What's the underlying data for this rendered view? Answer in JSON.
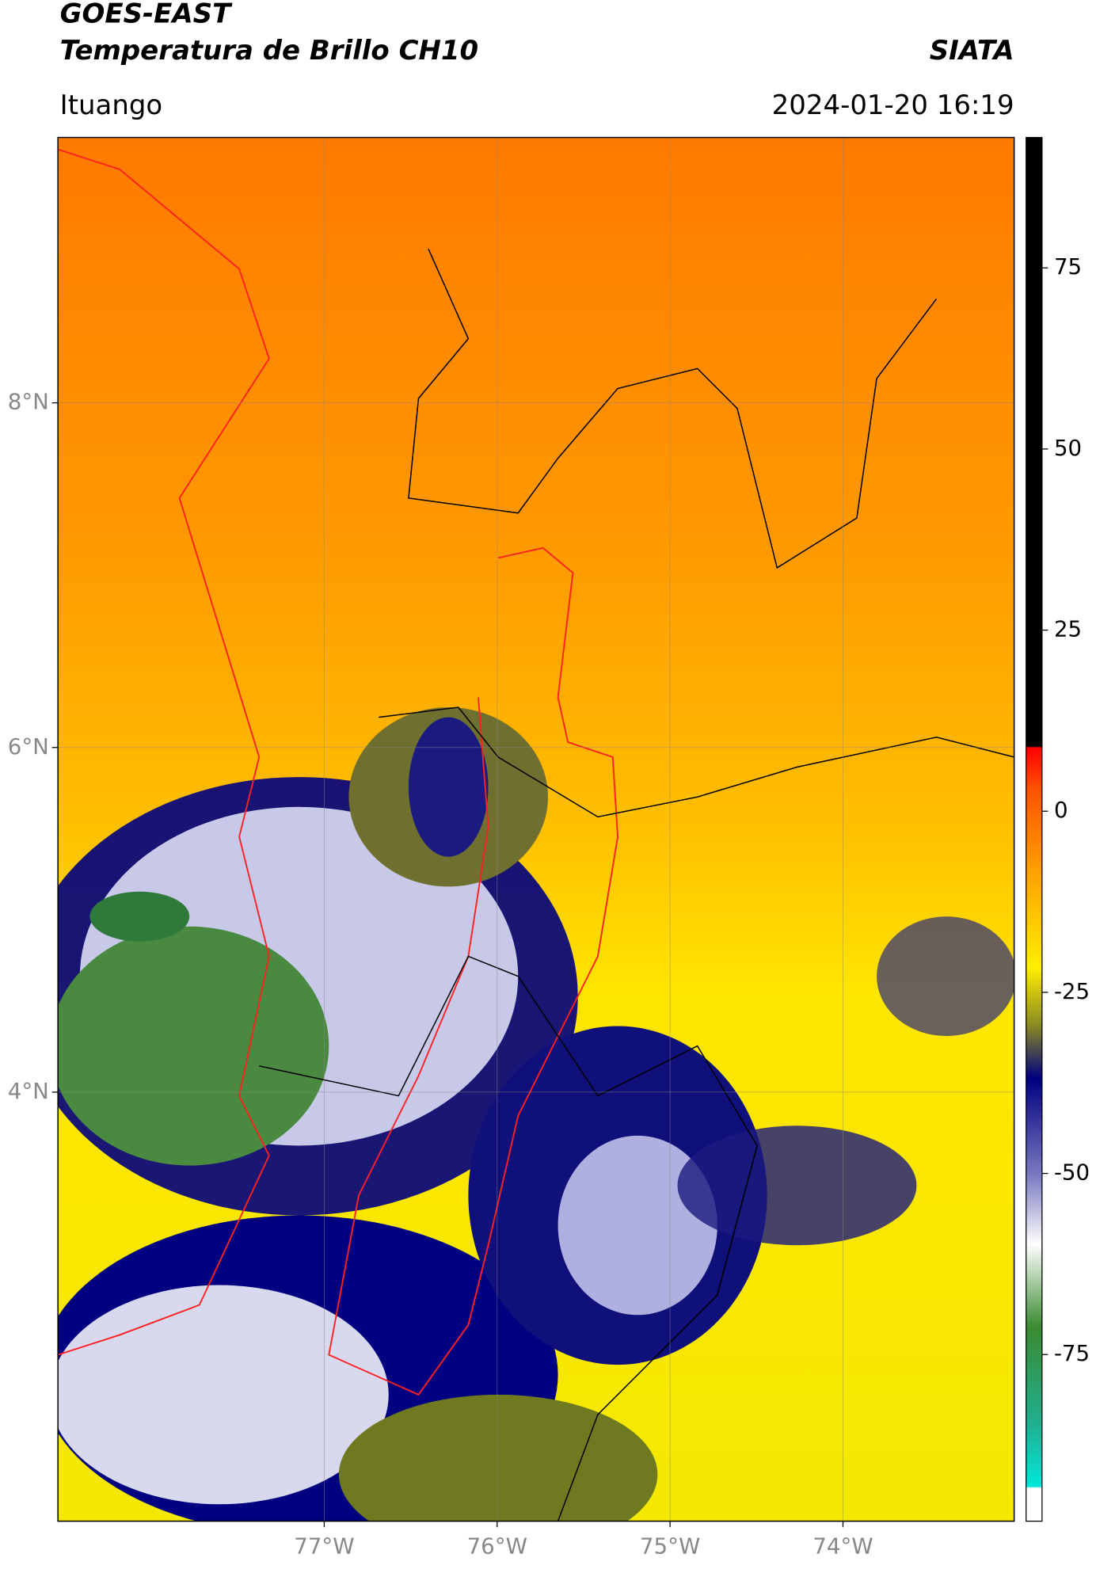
{
  "header": {
    "title": "GOES-EAST",
    "subtitle": "Temperatura de Brillo CH10",
    "credit": "SIATA",
    "region": "Ituango",
    "timestamp": "2024-01-20 16:19"
  },
  "map": {
    "xlim": [
      -78.54,
      -73.01
    ],
    "ylim": [
      1.51,
      9.54
    ],
    "xticks": [
      {
        "value": -77,
        "label": "77°W"
      },
      {
        "value": -76,
        "label": "76°W"
      },
      {
        "value": -75,
        "label": "75°W"
      },
      {
        "value": -74,
        "label": "74°W"
      }
    ],
    "yticks": [
      {
        "value": 8,
        "label": "8°N"
      },
      {
        "value": 6,
        "label": "6°N"
      },
      {
        "value": 4,
        "label": "4°N"
      }
    ],
    "grid": true
  },
  "colorbar": {
    "lim": [
      -98,
      93
    ],
    "ticks": [
      75,
      50,
      25,
      0,
      -25,
      -50,
      -75
    ]
  }
}
